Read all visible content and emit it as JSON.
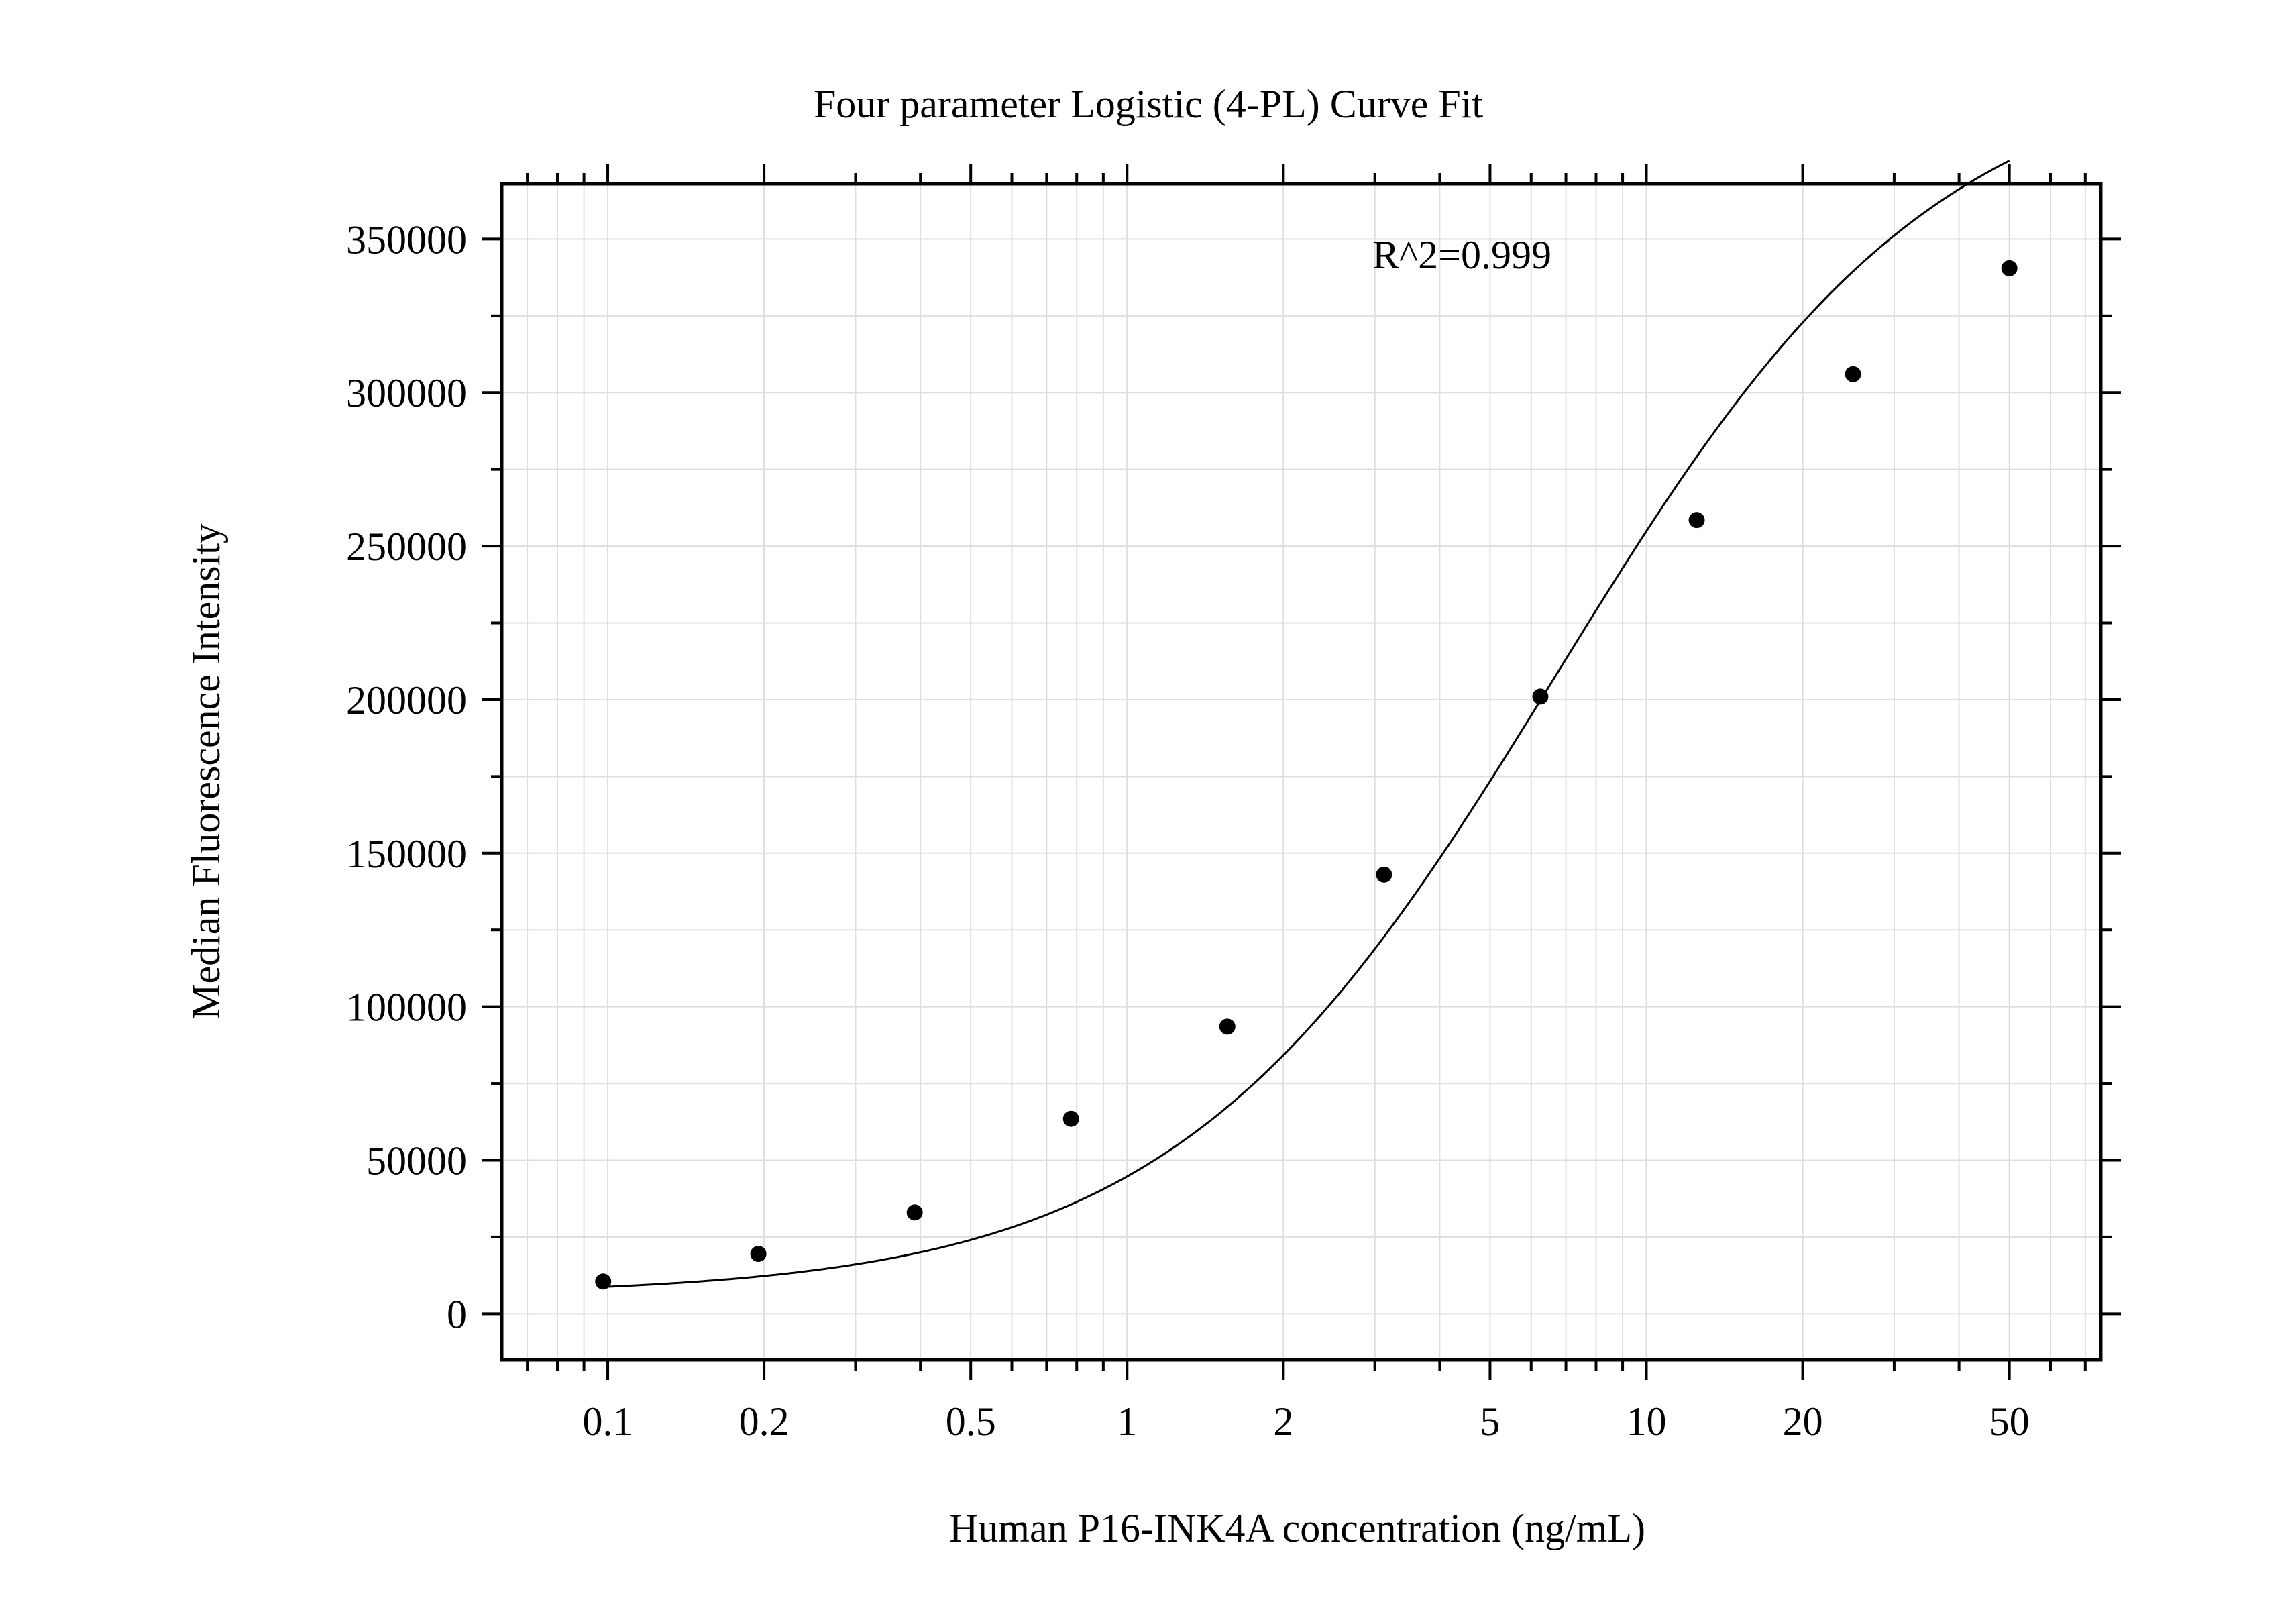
{
  "chart_data": {
    "type": "scatter",
    "title": "Four parameter Logistic (4-PL) Curve Fit",
    "xlabel": "Human P16-INK4A concentration (ng/mL)",
    "ylabel": "Median Fluorescence Intensity",
    "annotation": "R^2=0.999",
    "x_scale": "log",
    "xlim": [
      0.0625,
      75
    ],
    "ylim": [
      -15000,
      368000
    ],
    "x_ticks": [
      0.1,
      0.2,
      0.5,
      1,
      2,
      5,
      10,
      20,
      50
    ],
    "x_tick_labels": [
      "0.1",
      "0.2",
      "0.5",
      "1",
      "2",
      "5",
      "10",
      "20",
      "50"
    ],
    "y_ticks": [
      0,
      50000,
      100000,
      150000,
      200000,
      250000,
      300000,
      350000
    ],
    "y_tick_labels": [
      "0",
      "50000",
      "100000",
      "150000",
      "200000",
      "250000",
      "300000",
      "350000"
    ],
    "grid": true,
    "legend": "none",
    "series": [
      {
        "kind": "points",
        "x": [
          0.098,
          0.195,
          0.39,
          0.78,
          1.56,
          3.125,
          6.25,
          12.5,
          25,
          50
        ],
        "y": [
          10500,
          19500,
          33000,
          63500,
          93500,
          143000,
          201000,
          258500,
          306000,
          340500
        ],
        "color": "#000000"
      },
      {
        "kind": "fit-curve",
        "model": "4PL",
        "params": {
          "A": 6000,
          "B": 1.18,
          "C": 6.7,
          "D": 410000
        },
        "color": "#000000"
      }
    ]
  }
}
